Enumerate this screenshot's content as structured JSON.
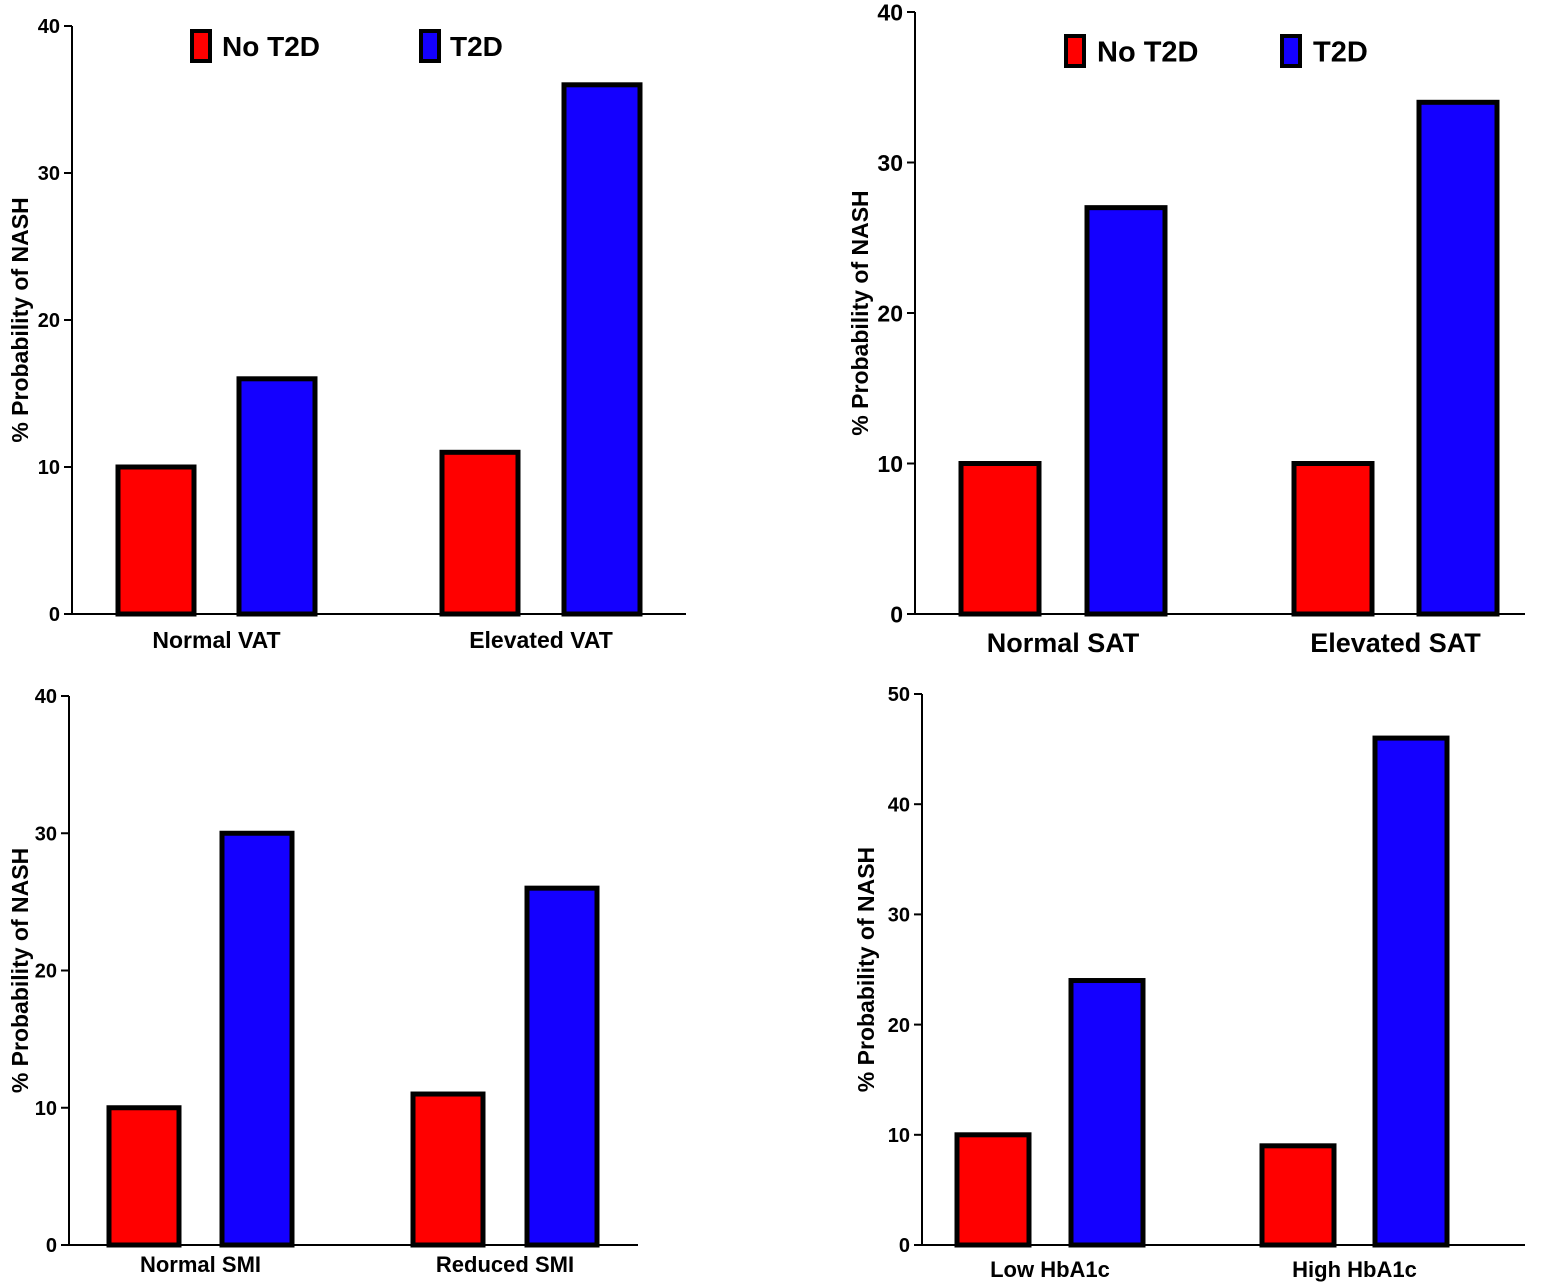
{
  "chart_data": [
    {
      "type": "bar",
      "categories": [
        "Normal VAT",
        "Elevated VAT"
      ],
      "series": [
        {
          "name": "No T2D",
          "values": [
            10,
            11
          ]
        },
        {
          "name": "T2D",
          "values": [
            16,
            36
          ]
        }
      ],
      "title": "",
      "xlabel": "",
      "ylabel": "% Probability of NASH",
      "ylim": [
        0,
        40
      ],
      "yticks": [
        0,
        10,
        20,
        30,
        40
      ],
      "legend": [
        "No T2D",
        "T2D"
      ],
      "legend_position": "top"
    },
    {
      "type": "bar",
      "categories": [
        "Normal SAT",
        "Elevated SAT"
      ],
      "series": [
        {
          "name": "No T2D",
          "values": [
            10,
            10
          ]
        },
        {
          "name": "T2D",
          "values": [
            27,
            34
          ]
        }
      ],
      "title": "",
      "xlabel": "",
      "ylabel": "% Probability of NASH",
      "ylim": [
        0,
        40
      ],
      "yticks": [
        0,
        10,
        20,
        30,
        40
      ],
      "legend": [
        "No T2D",
        "T2D"
      ],
      "legend_position": "top"
    },
    {
      "type": "bar",
      "categories": [
        "Normal SMI",
        "Reduced SMI"
      ],
      "series": [
        {
          "name": "No T2D",
          "values": [
            10,
            11
          ]
        },
        {
          "name": "T2D",
          "values": [
            30,
            26
          ]
        }
      ],
      "title": "",
      "xlabel": "",
      "ylabel": "% Probability of NASH",
      "ylim": [
        0,
        40
      ],
      "yticks": [
        0,
        10,
        20,
        30,
        40
      ],
      "legend": [],
      "legend_position": "none"
    },
    {
      "type": "bar",
      "categories": [
        "Low HbA1c",
        "High HbA1c"
      ],
      "series": [
        {
          "name": "No T2D",
          "values": [
            10,
            9
          ]
        },
        {
          "name": "T2D",
          "values": [
            24,
            46
          ]
        }
      ],
      "title": "",
      "xlabel": "",
      "ylabel": "% Probability of NASH",
      "ylim": [
        0,
        50
      ],
      "yticks": [
        0,
        10,
        20,
        30,
        40,
        50
      ],
      "legend": [],
      "legend_position": "none"
    }
  ],
  "colors": {
    "No T2D": "#ff0000",
    "T2D": "#1400ff",
    "outline": "#000000"
  }
}
